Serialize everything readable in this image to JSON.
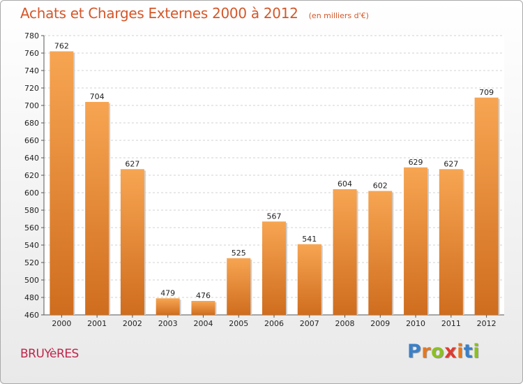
{
  "chart_data": {
    "type": "bar",
    "title": "Achats et Charges Externes 2000 à 2012",
    "unit": "(en milliers d'€)",
    "categories": [
      "2000",
      "2001",
      "2002",
      "2003",
      "2004",
      "2005",
      "2006",
      "2007",
      "2008",
      "2009",
      "2010",
      "2011",
      "2012"
    ],
    "values": [
      762,
      704,
      627,
      479,
      476,
      525,
      567,
      541,
      604,
      602,
      629,
      627,
      709
    ],
    "value_labels": [
      "762",
      "704",
      "627",
      "479",
      "476",
      "525",
      "567",
      "541",
      "604",
      "602",
      "629",
      "627",
      "709"
    ],
    "ylim": [
      460,
      780
    ],
    "y_ticks": [
      "460",
      "480",
      "500",
      "520",
      "540",
      "560",
      "580",
      "600",
      "620",
      "640",
      "660",
      "680",
      "700",
      "720",
      "740",
      "760",
      "780"
    ],
    "grid": true,
    "legend": "none",
    "bar_color_top": "#f7a552",
    "bar_color_bottom": "#cf6d1e"
  },
  "place": "BRUYèRES",
  "brand": {
    "letters": [
      "P",
      "r",
      "o",
      "x",
      "i",
      "t",
      "i"
    ],
    "colors": [
      "#3a80c9",
      "#e6781e",
      "#8cbf26",
      "#e03a2f",
      "#e6781e",
      "#3a80c9",
      "#8cbf26"
    ]
  }
}
